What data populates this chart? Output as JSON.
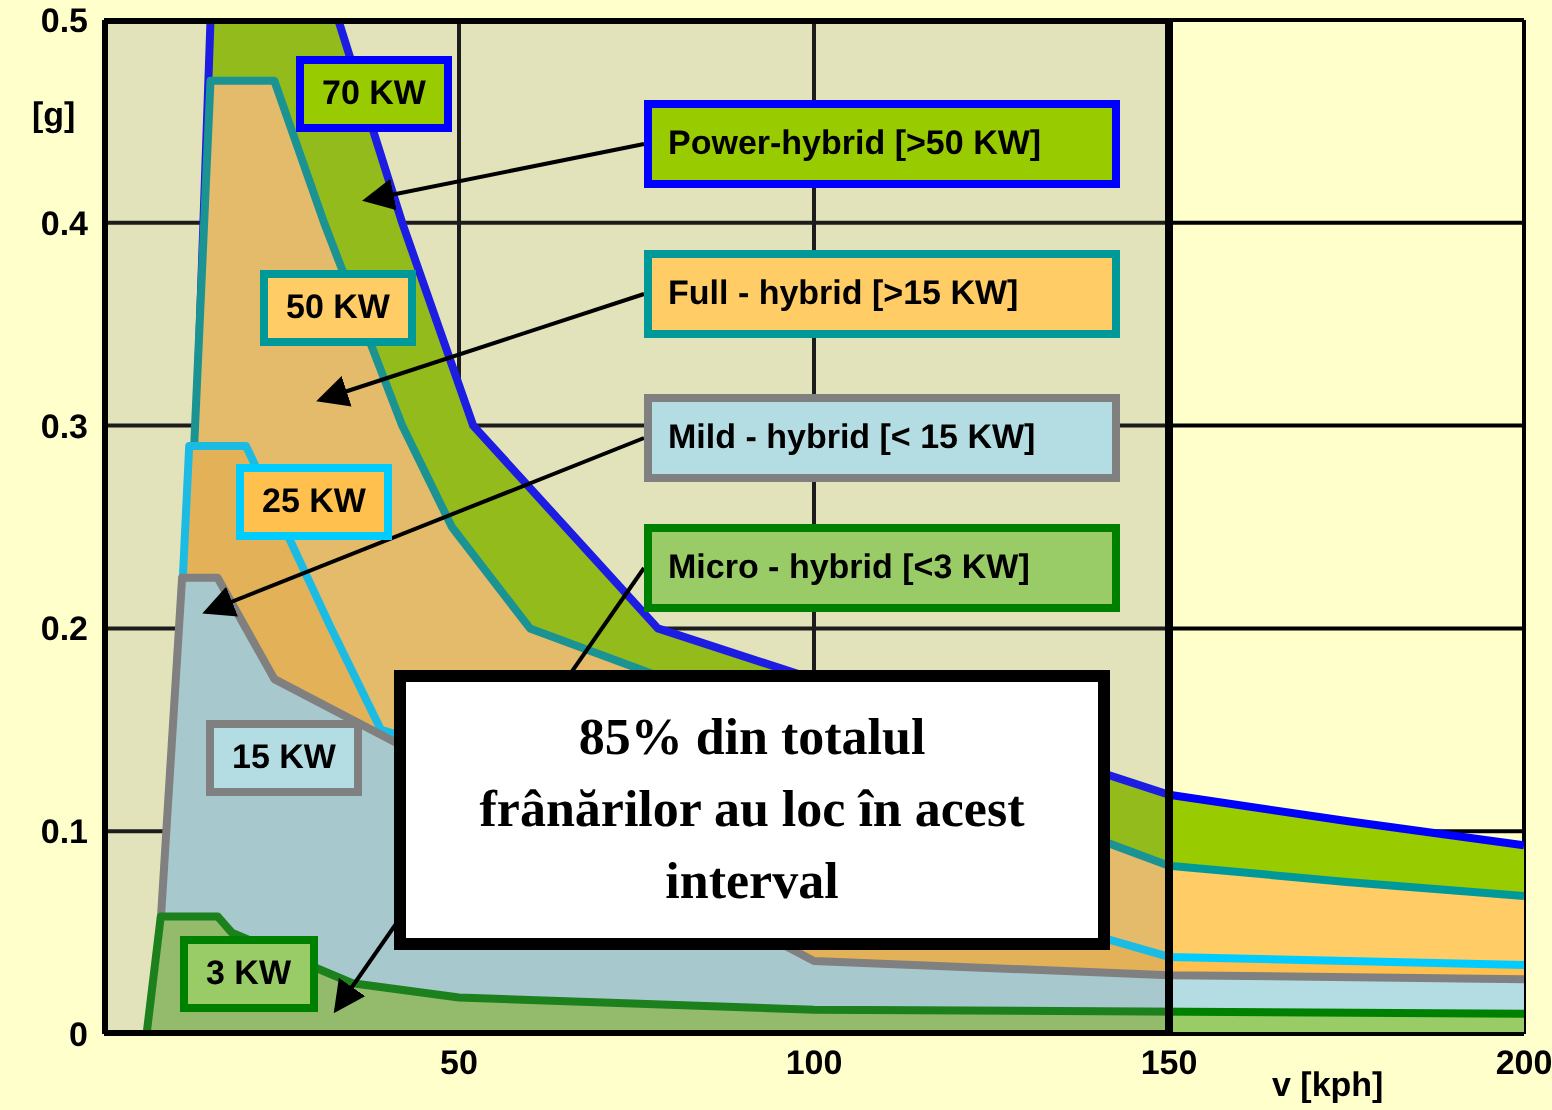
{
  "chart_data": {
    "type": "area",
    "xlabel": "v [kph]",
    "ylabel": "[g]",
    "xlim": [
      0,
      200
    ],
    "xticks": [
      50,
      100,
      150,
      200
    ],
    "ylim": [
      0,
      0.5
    ],
    "yticks": [
      0,
      0.1,
      0.2,
      0.3,
      0.4,
      0.5
    ],
    "grid": true,
    "legend": false,
    "series": [
      {
        "name": "70 KW",
        "color": "#99cc00",
        "x": [
          10,
          15,
          33,
          42,
          52,
          78,
          150,
          175,
          200
        ],
        "values": [
          0,
          0.5,
          0.5,
          0.4,
          0.3,
          0.2,
          0.118,
          0.105,
          0.093
        ]
      },
      {
        "name": "50 KW",
        "color": "#ffcc66",
        "x": [
          9,
          15,
          24,
          31,
          42,
          49,
          60,
          150,
          175,
          200
        ],
        "values": [
          0,
          0.47,
          0.47,
          0.4,
          0.3,
          0.25,
          0.2,
          0.083,
          0.075,
          0.068
        ]
      },
      {
        "name": "25 KW",
        "color": "#ffc04d",
        "x": [
          8,
          12,
          20,
          32,
          39,
          150,
          200
        ],
        "values": [
          0,
          0.29,
          0.29,
          0.2,
          0.15,
          0.038,
          0.034
        ]
      },
      {
        "name": "15 KW",
        "color": "#b3dde3",
        "x": [
          7,
          11,
          16,
          24,
          100,
          150,
          200
        ],
        "values": [
          0,
          0.225,
          0.225,
          0.175,
          0.036,
          0.029,
          0.027
        ]
      },
      {
        "name": "3 KW",
        "color": "#99cc66",
        "x": [
          6,
          8,
          16,
          18,
          35,
          50,
          100,
          200
        ],
        "values": [
          0,
          0.058,
          0.058,
          0.05,
          0.025,
          0.018,
          0.012,
          0.01
        ]
      }
    ],
    "annotations": [
      "Power-hybrid [>50 KW]",
      "Full - hybrid [>15 KW]",
      "Mild - hybrid [< 15 KW]",
      "Micro - hybrid [<3 KW]"
    ],
    "bands": [
      {
        "axis": "x",
        "from": 0,
        "to": 150,
        "label": "85% din totalul frânărilor au loc în acest interval",
        "color": "#808080"
      }
    ]
  }
}
